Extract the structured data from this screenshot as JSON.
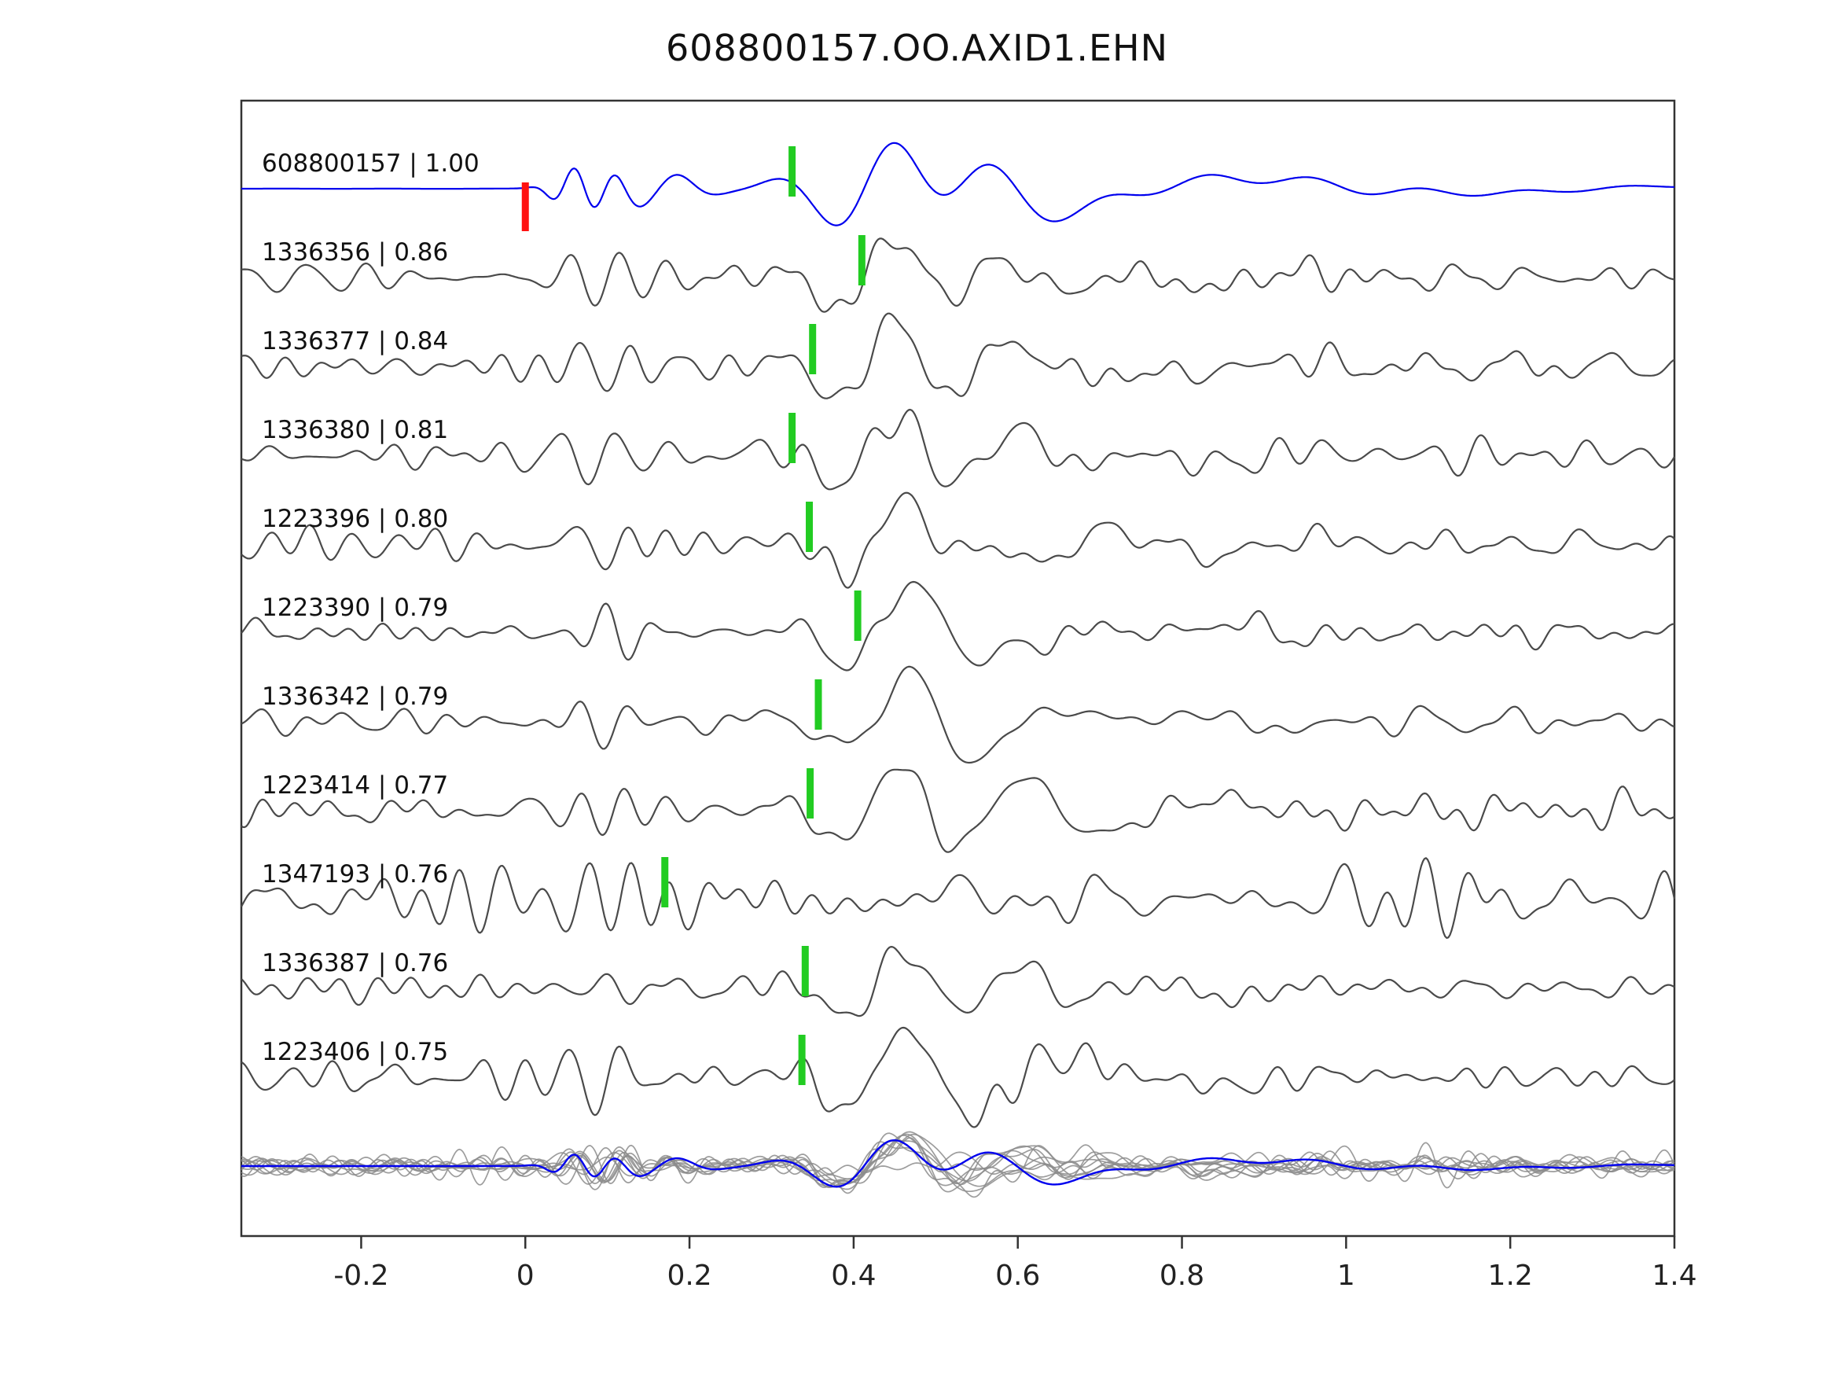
{
  "figure": {
    "title": "608800157.OO.AXID1.EHN"
  },
  "chart_data": {
    "type": "line",
    "title": "608800157.OO.AXID1.EHN",
    "xlabel": "",
    "ylabel": "",
    "xlim": [
      -0.346,
      1.4
    ],
    "x_ticks": [
      -0.2,
      0,
      0.2,
      0.4,
      0.6,
      0.8,
      1,
      1.2,
      1.4
    ],
    "x_tick_labels": [
      "-0.2",
      "0",
      "0.2",
      "0.4",
      "0.6",
      "0.8",
      "1",
      "1.2",
      "1.4"
    ],
    "y_ticks": [],
    "grid": false,
    "legend": "none",
    "colors": {
      "template_trace": "#0000ee",
      "detection_trace": "#4a4a4a",
      "pick_green": "#22cc22",
      "pick_red": "#ff1111",
      "overlay_gray": "#8c8c8c",
      "stack_blue": "#0000ee",
      "axes": "#333333"
    },
    "traces": [
      {
        "label": "608800157 | 1.00",
        "event_id": "608800157",
        "correlation": 1.0,
        "role": "template",
        "picks": [
          {
            "x": 0.0,
            "color": "#ff1111"
          },
          {
            "x": 0.325,
            "color": "#22cc22"
          }
        ]
      },
      {
        "label": "1336356 | 0.86",
        "event_id": "1336356",
        "correlation": 0.86,
        "role": "detection",
        "picks": [
          {
            "x": 0.41,
            "color": "#22cc22"
          }
        ]
      },
      {
        "label": "1336377 | 0.84",
        "event_id": "1336377",
        "correlation": 0.84,
        "role": "detection",
        "picks": [
          {
            "x": 0.35,
            "color": "#22cc22"
          }
        ]
      },
      {
        "label": "1336380 | 0.81",
        "event_id": "1336380",
        "correlation": 0.81,
        "role": "detection",
        "picks": [
          {
            "x": 0.325,
            "color": "#22cc22"
          }
        ]
      },
      {
        "label": "1223396 | 0.80",
        "event_id": "1223396",
        "correlation": 0.8,
        "role": "detection",
        "picks": [
          {
            "x": 0.346,
            "color": "#22cc22"
          }
        ]
      },
      {
        "label": "1223390 | 0.79",
        "event_id": "1223390",
        "correlation": 0.79,
        "role": "detection",
        "picks": [
          {
            "x": 0.405,
            "color": "#22cc22"
          }
        ]
      },
      {
        "label": "1336342 | 0.79",
        "event_id": "1336342",
        "correlation": 0.79,
        "role": "detection",
        "picks": [
          {
            "x": 0.357,
            "color": "#22cc22"
          }
        ]
      },
      {
        "label": "1223414 | 0.77",
        "event_id": "1223414",
        "correlation": 0.77,
        "role": "detection",
        "picks": [
          {
            "x": 0.347,
            "color": "#22cc22"
          }
        ]
      },
      {
        "label": "1347193 | 0.76",
        "event_id": "1347193",
        "correlation": 0.76,
        "role": "detection-noisy",
        "picks": [
          {
            "x": 0.17,
            "color": "#22cc22"
          }
        ]
      },
      {
        "label": "1336387 | 0.76",
        "event_id": "1336387",
        "correlation": 0.76,
        "role": "detection",
        "picks": [
          {
            "x": 0.341,
            "color": "#22cc22"
          }
        ]
      },
      {
        "label": "1223406 | 0.75",
        "event_id": "1223406",
        "correlation": 0.75,
        "role": "detection",
        "picks": [
          {
            "x": 0.337,
            "color": "#22cc22"
          }
        ]
      }
    ],
    "overlay": {
      "description": "all detection traces overlaid in gray with blue template stack",
      "line_color": "#8c8c8c",
      "stack_color": "#0000ee"
    }
  }
}
